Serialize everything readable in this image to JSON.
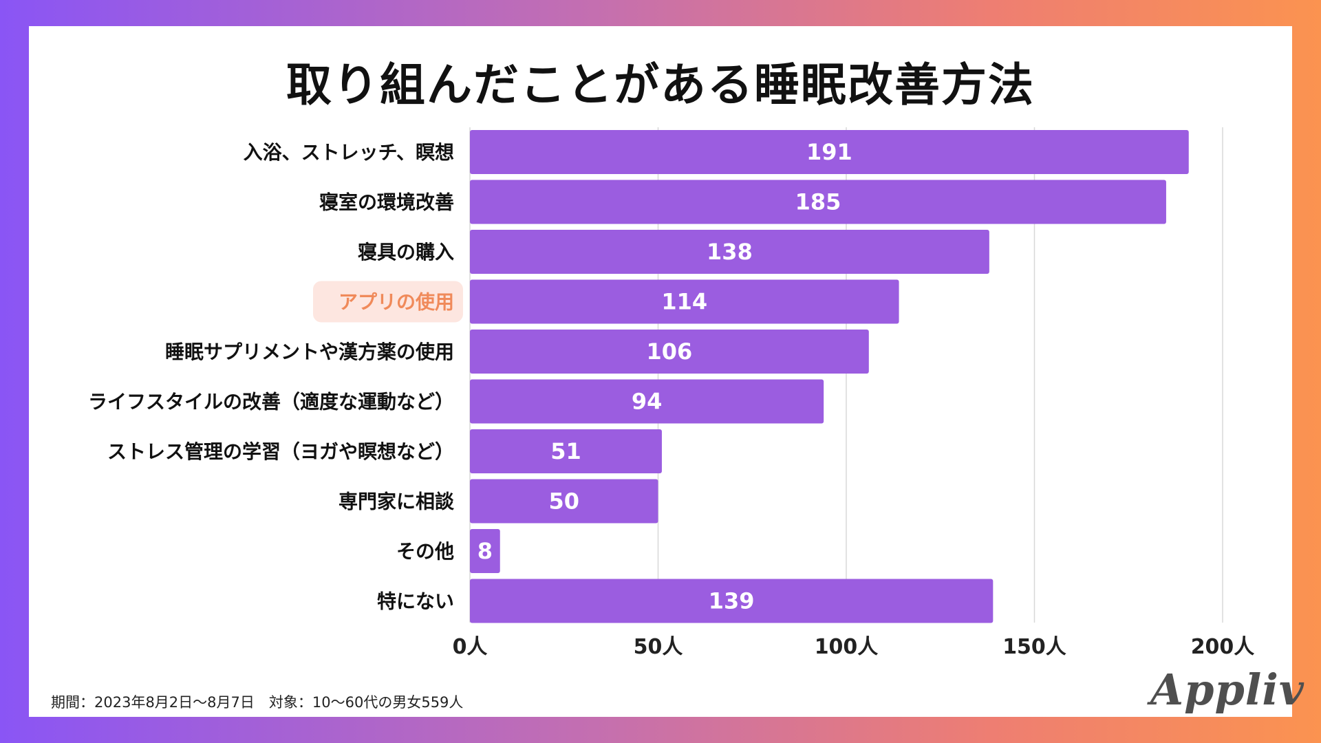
{
  "title": "取り組んだことがある睡眠改善方法",
  "footer": "期間：2023年8月2日〜8月7日　対象：10〜60代の男女559人",
  "logo_text": "Appliv",
  "colors": {
    "bar": "#9b5de0",
    "highlight_text": "#f08a5a",
    "highlight_bg": "#fde6e0",
    "grid": "#d8d8d8"
  },
  "chart_data": {
    "type": "bar",
    "orientation": "horizontal",
    "title": "取り組んだことがある睡眠改善方法",
    "categories": [
      "入浴、ストレッチ、瞑想",
      "寝室の環境改善",
      "寝具の購入",
      "アプリの使用",
      "睡眠サプリメントや漢方薬の使用",
      "ライフスタイルの改善（適度な運動など）",
      "ストレス管理の学習（ヨガや瞑想など）",
      "専門家に相談",
      "その他",
      "特にない"
    ],
    "values": [
      191,
      185,
      138,
      114,
      106,
      94,
      51,
      50,
      8,
      139
    ],
    "highlighted_category": "アプリの使用",
    "xlim": [
      0,
      200
    ],
    "xticks": [
      0,
      50,
      100,
      150,
      200
    ],
    "xtick_labels": [
      "0人",
      "50人",
      "100人",
      "150人",
      "200人"
    ],
    "grid": true,
    "data_labels": true
  }
}
